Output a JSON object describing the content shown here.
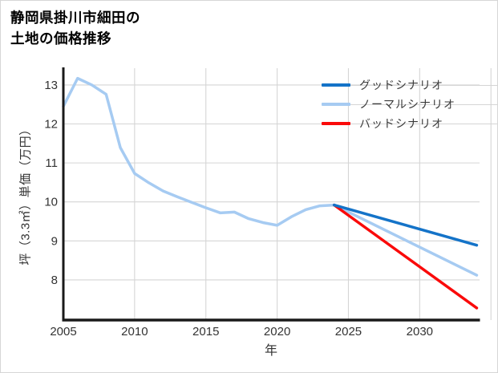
{
  "frame": {
    "background": "#ffffff",
    "border_color": "#d6d6d6",
    "grid_color": "#d5d5d5",
    "axis_color": "#1a1a1a",
    "tick_label_color": "#333333"
  },
  "title": {
    "line1": "静岡県掛川市細田の",
    "line2": "土地の価格推移"
  },
  "legend": {
    "items": [
      {
        "id": "good",
        "label": "グッドシナリオ",
        "color": "#1473c8"
      },
      {
        "id": "normal",
        "label": "ノーマルシナリオ",
        "color": "#a6cbf2"
      },
      {
        "id": "bad",
        "label": "バッドシナリオ",
        "color": "#fa0a0a"
      }
    ]
  },
  "chart_data": {
    "type": "line",
    "title": "静岡県掛川市細田の土地の価格推移",
    "xlabel": "年",
    "ylabel": "坪（3.3㎡）単価（万円）",
    "x_ticks": [
      2005,
      2010,
      2015,
      2020,
      2025,
      2030
    ],
    "x_grid": [
      2010,
      2015,
      2020,
      2025,
      2030,
      2035
    ],
    "y_ticks": [
      8,
      9,
      10,
      11,
      12,
      13
    ],
    "xlim": [
      2005,
      2034.2
    ],
    "ylim": [
      6.97,
      13.43
    ],
    "grid": true,
    "legend_position": "upper right",
    "series": [
      {
        "id": "good",
        "name": "グッドシナリオ",
        "color": "#1473c8",
        "x": [
          2024,
          2034
        ],
        "values": [
          9.92,
          8.89
        ]
      },
      {
        "id": "normal",
        "name": "ノーマルシナリオ",
        "color": "#a6cbf2",
        "x": [
          2005,
          2006,
          2007,
          2008,
          2009,
          2010,
          2011,
          2012,
          2013,
          2014,
          2015,
          2016,
          2017,
          2018,
          2019,
          2020,
          2021,
          2022,
          2023,
          2024,
          2034
        ],
        "values": [
          12.45,
          13.17,
          13.0,
          12.76,
          11.39,
          10.73,
          10.49,
          10.28,
          10.13,
          9.99,
          9.85,
          9.72,
          9.74,
          9.57,
          9.47,
          9.4,
          9.62,
          9.8,
          9.9,
          9.92,
          8.12
        ]
      },
      {
        "id": "bad",
        "name": "バッドシナリオ",
        "color": "#fa0a0a",
        "x": [
          2024,
          2034
        ],
        "values": [
          9.92,
          7.28
        ]
      }
    ]
  }
}
